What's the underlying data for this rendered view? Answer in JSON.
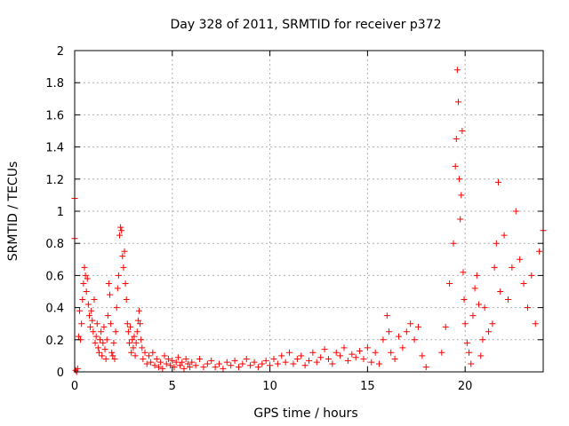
{
  "chart_data": {
    "type": "scatter",
    "title": "Day 328 of 2011, SRMTID for receiver p372",
    "xlabel": "GPS time / hours",
    "ylabel": "SRMTID / TECUs",
    "xlim": [
      0,
      24
    ],
    "ylim": [
      0,
      2
    ],
    "xticks": [
      "0",
      "5",
      "10",
      "15",
      "20"
    ],
    "xtick_values": [
      0,
      5,
      10,
      15,
      20
    ],
    "yticks": [
      "0",
      "0.2",
      "0.4",
      "0.6",
      "0.8",
      "1",
      "1.2",
      "1.4",
      "1.6",
      "1.8",
      "2"
    ],
    "ytick_values": [
      0,
      0.2,
      0.4,
      0.6,
      0.8,
      1.0,
      1.2,
      1.4,
      1.6,
      1.8,
      2.0
    ],
    "grid": true,
    "marker": "+",
    "color": "#ff0000",
    "series": [
      {
        "name": "SRMTID",
        "points": [
          [
            0.0,
            1.08
          ],
          [
            0.0,
            0.83
          ],
          [
            0.05,
            0.01
          ],
          [
            0.1,
            0.0
          ],
          [
            0.15,
            0.02
          ],
          [
            0.2,
            0.22
          ],
          [
            0.25,
            0.38
          ],
          [
            0.3,
            0.2
          ],
          [
            0.35,
            0.3
          ],
          [
            0.4,
            0.45
          ],
          [
            0.45,
            0.55
          ],
          [
            0.5,
            0.65
          ],
          [
            0.55,
            0.6
          ],
          [
            0.6,
            0.5
          ],
          [
            0.65,
            0.58
          ],
          [
            0.7,
            0.42
          ],
          [
            0.75,
            0.35
          ],
          [
            0.8,
            0.28
          ],
          [
            0.85,
            0.38
          ],
          [
            0.9,
            0.32
          ],
          [
            0.95,
            0.25
          ],
          [
            1.0,
            0.45
          ],
          [
            1.05,
            0.18
          ],
          [
            1.1,
            0.22
          ],
          [
            1.15,
            0.3
          ],
          [
            1.2,
            0.15
          ],
          [
            1.25,
            0.12
          ],
          [
            1.3,
            0.2
          ],
          [
            1.35,
            0.25
          ],
          [
            1.4,
            0.1
          ],
          [
            1.45,
            0.18
          ],
          [
            1.5,
            0.28
          ],
          [
            1.55,
            0.14
          ],
          [
            1.6,
            0.08
          ],
          [
            1.65,
            0.2
          ],
          [
            1.7,
            0.35
          ],
          [
            1.75,
            0.55
          ],
          [
            1.8,
            0.48
          ],
          [
            1.85,
            0.3
          ],
          [
            1.9,
            0.12
          ],
          [
            1.95,
            0.1
          ],
          [
            2.0,
            0.18
          ],
          [
            2.05,
            0.08
          ],
          [
            2.1,
            0.25
          ],
          [
            2.15,
            0.4
          ],
          [
            2.2,
            0.52
          ],
          [
            2.25,
            0.6
          ],
          [
            2.3,
            0.85
          ],
          [
            2.35,
            0.9
          ],
          [
            2.4,
            0.88
          ],
          [
            2.45,
            0.72
          ],
          [
            2.5,
            0.65
          ],
          [
            2.55,
            0.75
          ],
          [
            2.6,
            0.55
          ],
          [
            2.65,
            0.45
          ],
          [
            2.7,
            0.3
          ],
          [
            2.75,
            0.25
          ],
          [
            2.8,
            0.18
          ],
          [
            2.85,
            0.28
          ],
          [
            2.9,
            0.12
          ],
          [
            2.95,
            0.2
          ],
          [
            3.0,
            0.15
          ],
          [
            3.05,
            0.22
          ],
          [
            3.1,
            0.1
          ],
          [
            3.15,
            0.18
          ],
          [
            3.2,
            0.25
          ],
          [
            3.25,
            0.32
          ],
          [
            3.3,
            0.38
          ],
          [
            3.35,
            0.3
          ],
          [
            3.4,
            0.2
          ],
          [
            3.45,
            0.15
          ],
          [
            3.5,
            0.08
          ],
          [
            3.6,
            0.12
          ],
          [
            3.7,
            0.05
          ],
          [
            3.8,
            0.1
          ],
          [
            3.9,
            0.06
          ],
          [
            4.0,
            0.12
          ],
          [
            4.1,
            0.04
          ],
          [
            4.2,
            0.08
          ],
          [
            4.3,
            0.03
          ],
          [
            4.4,
            0.06
          ],
          [
            4.5,
            0.02
          ],
          [
            4.6,
            0.1
          ],
          [
            4.7,
            0.05
          ],
          [
            4.8,
            0.08
          ],
          [
            4.9,
            0.04
          ],
          [
            5.0,
            0.07
          ],
          [
            5.1,
            0.03
          ],
          [
            5.2,
            0.06
          ],
          [
            5.3,
            0.09
          ],
          [
            5.4,
            0.04
          ],
          [
            5.5,
            0.06
          ],
          [
            5.6,
            0.02
          ],
          [
            5.7,
            0.08
          ],
          [
            5.8,
            0.05
          ],
          [
            5.9,
            0.03
          ],
          [
            6.0,
            0.06
          ],
          [
            6.2,
            0.04
          ],
          [
            6.4,
            0.08
          ],
          [
            6.6,
            0.03
          ],
          [
            6.8,
            0.05
          ],
          [
            7.0,
            0.07
          ],
          [
            7.2,
            0.03
          ],
          [
            7.4,
            0.05
          ],
          [
            7.6,
            0.02
          ],
          [
            7.8,
            0.06
          ],
          [
            8.0,
            0.04
          ],
          [
            8.2,
            0.07
          ],
          [
            8.4,
            0.03
          ],
          [
            8.6,
            0.05
          ],
          [
            8.8,
            0.08
          ],
          [
            9.0,
            0.04
          ],
          [
            9.2,
            0.06
          ],
          [
            9.4,
            0.03
          ],
          [
            9.6,
            0.05
          ],
          [
            9.8,
            0.07
          ],
          [
            10.0,
            0.04
          ],
          [
            10.2,
            0.08
          ],
          [
            10.4,
            0.05
          ],
          [
            10.6,
            0.1
          ],
          [
            10.8,
            0.06
          ],
          [
            11.0,
            0.12
          ],
          [
            11.2,
            0.05
          ],
          [
            11.4,
            0.08
          ],
          [
            11.6,
            0.1
          ],
          [
            11.8,
            0.04
          ],
          [
            12.0,
            0.07
          ],
          [
            12.2,
            0.12
          ],
          [
            12.4,
            0.06
          ],
          [
            12.6,
            0.09
          ],
          [
            12.8,
            0.14
          ],
          [
            13.0,
            0.08
          ],
          [
            13.2,
            0.05
          ],
          [
            13.4,
            0.12
          ],
          [
            13.6,
            0.1
          ],
          [
            13.8,
            0.15
          ],
          [
            14.0,
            0.07
          ],
          [
            14.2,
            0.11
          ],
          [
            14.4,
            0.09
          ],
          [
            14.6,
            0.13
          ],
          [
            14.8,
            0.08
          ],
          [
            15.0,
            0.15
          ],
          [
            15.2,
            0.06
          ],
          [
            15.4,
            0.12
          ],
          [
            15.6,
            0.05
          ],
          [
            15.8,
            0.2
          ],
          [
            16.0,
            0.35
          ],
          [
            16.1,
            0.25
          ],
          [
            16.2,
            0.12
          ],
          [
            16.4,
            0.08
          ],
          [
            16.6,
            0.22
          ],
          [
            16.8,
            0.15
          ],
          [
            17.0,
            0.25
          ],
          [
            17.2,
            0.3
          ],
          [
            17.4,
            0.2
          ],
          [
            17.6,
            0.28
          ],
          [
            17.8,
            0.1
          ],
          [
            18.0,
            0.03
          ],
          [
            18.8,
            0.12
          ],
          [
            19.0,
            0.28
          ],
          [
            19.2,
            0.55
          ],
          [
            19.4,
            0.8
          ],
          [
            19.5,
            1.28
          ],
          [
            19.55,
            1.45
          ],
          [
            19.6,
            1.88
          ],
          [
            19.65,
            1.68
          ],
          [
            19.7,
            1.2
          ],
          [
            19.75,
            0.95
          ],
          [
            19.8,
            1.1
          ],
          [
            19.85,
            1.5
          ],
          [
            19.9,
            0.62
          ],
          [
            19.95,
            0.45
          ],
          [
            20.0,
            0.3
          ],
          [
            20.1,
            0.18
          ],
          [
            20.2,
            0.12
          ],
          [
            20.3,
            0.05
          ],
          [
            20.4,
            0.35
          ],
          [
            20.5,
            0.52
          ],
          [
            20.6,
            0.6
          ],
          [
            20.7,
            0.42
          ],
          [
            20.8,
            0.1
          ],
          [
            20.9,
            0.2
          ],
          [
            21.0,
            0.4
          ],
          [
            21.2,
            0.25
          ],
          [
            21.4,
            0.3
          ],
          [
            21.5,
            0.65
          ],
          [
            21.6,
            0.8
          ],
          [
            21.7,
            1.18
          ],
          [
            21.8,
            0.5
          ],
          [
            22.0,
            0.85
          ],
          [
            22.2,
            0.45
          ],
          [
            22.4,
            0.65
          ],
          [
            22.6,
            1.0
          ],
          [
            22.8,
            0.7
          ],
          [
            23.0,
            0.55
          ],
          [
            23.2,
            0.4
          ],
          [
            23.4,
            0.6
          ],
          [
            23.6,
            0.3
          ],
          [
            23.8,
            0.75
          ],
          [
            24.0,
            0.88
          ]
        ]
      }
    ]
  }
}
